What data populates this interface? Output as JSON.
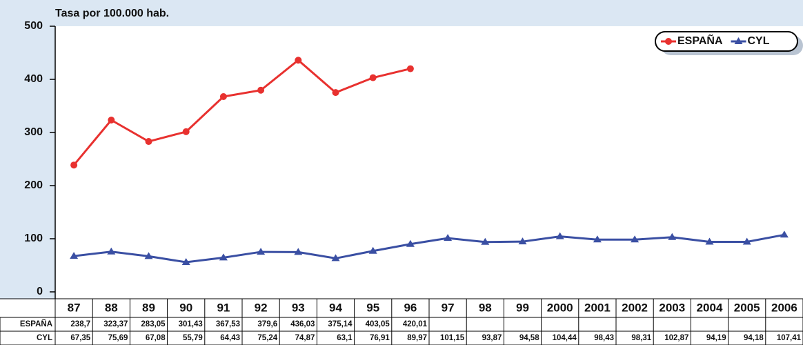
{
  "chart_data": {
    "type": "line",
    "title": "Tasa por 100.000 hab.",
    "categories": [
      "87",
      "88",
      "89",
      "90",
      "91",
      "92",
      "93",
      "94",
      "95",
      "96",
      "97",
      "98",
      "99",
      "2000",
      "2001",
      "2002",
      "2003",
      "2004",
      "2005",
      "2006"
    ],
    "series": [
      {
        "name": "ESPAÑA",
        "color": "#e8312f",
        "marker": "circle",
        "values": [
          238.7,
          323.37,
          283.05,
          301.43,
          367.53,
          379.6,
          436.03,
          375.14,
          403.05,
          420.01,
          null,
          null,
          null,
          null,
          null,
          null,
          null,
          null,
          null,
          null
        ],
        "value_labels": [
          "238,7",
          "323,37",
          "283,05",
          "301,43",
          "367,53",
          "379,6",
          "436,03",
          "375,14",
          "403,05",
          "420,01",
          null,
          null,
          null,
          null,
          null,
          null,
          null,
          null,
          null,
          null
        ]
      },
      {
        "name": "CYL",
        "color": "#3a4fa3",
        "marker": "triangle",
        "values": [
          67.35,
          75.69,
          67.08,
          55.79,
          64.43,
          75.24,
          74.87,
          63.1,
          76.91,
          89.97,
          101.15,
          93.87,
          94.58,
          104.44,
          98.43,
          98.31,
          102.87,
          94.19,
          94.18,
          107.41
        ],
        "value_labels": [
          "67,35",
          "75,69",
          "67,08",
          "55,79",
          "64,43",
          "75,24",
          "74,87",
          "63,1",
          "76,91",
          "89,97",
          "101,15",
          "93,87",
          "94,58",
          "104,44",
          "98,43",
          "98,31",
          "102,87",
          "94,19",
          "94,18",
          "107,41"
        ]
      }
    ],
    "ylim": [
      0,
      500
    ],
    "yticks": [
      0,
      100,
      200,
      300,
      400,
      500
    ],
    "grid": false,
    "legend": "top-right"
  }
}
